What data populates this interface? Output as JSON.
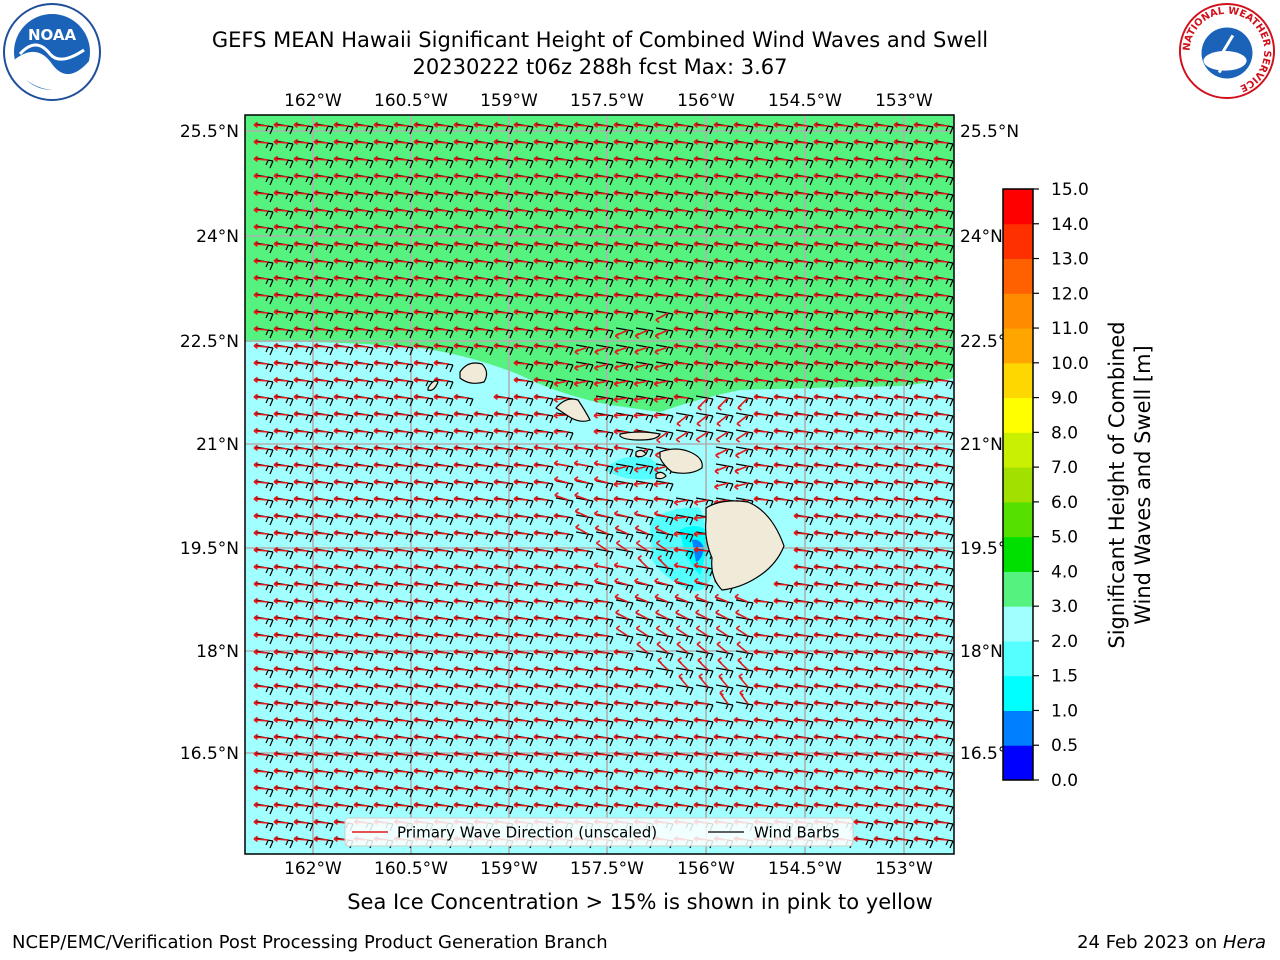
{
  "header": {
    "title_line1": "GEFS MEAN Hawaii Significant Height of Combined Wind Waves and Swell",
    "title_line2": "20230222 t06z 288h fcst   Max: 3.67"
  },
  "logos": {
    "left": "noaa-logo",
    "right": "nws-logo",
    "left_text": "NOAA",
    "right_ring_text": "NATIONAL WEATHER SERVICE"
  },
  "map": {
    "lon_labels": [
      "162°W",
      "160.5°W",
      "159°W",
      "157.5°W",
      "156°W",
      "154.5°W",
      "153°W"
    ],
    "lat_labels": [
      "25.5°N",
      "24°N",
      "22.5°N",
      "21°N",
      "19.5°N",
      "18°N",
      "16.5°N"
    ],
    "colors": {
      "green_zone": "#55f27f",
      "cyan_zone": "#a2ffff",
      "light_cyan": "#55ffff",
      "cyan_mid": "#00ffff",
      "blue_zone": "#0080ff",
      "land": "#f0ebd9",
      "wind_barb": "#000000",
      "wave_arrow": "#e31a1c",
      "gridline": "#b0b0b0"
    }
  },
  "legend": {
    "wave_label": "Primary Wave Direction (unscaled)",
    "barb_label": "Wind Barbs"
  },
  "colorbar": {
    "title_line1": "Significant Height of Combined",
    "title_line2": "Wind Waves and Swell [m]",
    "ticks": [
      "15.0",
      "14.0",
      "13.0",
      "12.0",
      "11.0",
      "10.0",
      "9.0",
      "8.0",
      "7.0",
      "6.0",
      "5.0",
      "4.0",
      "3.0",
      "2.0",
      "1.5",
      "1.0",
      "0.5",
      "0.0"
    ],
    "colors": [
      "#0000ff",
      "#0080ff",
      "#00ffff",
      "#55ffff",
      "#a2ffff",
      "#55f27f",
      "#00e000",
      "#55e000",
      "#a2e000",
      "#c8f000",
      "#ffff00",
      "#ffd700",
      "#ffa500",
      "#ff8c00",
      "#ff6000",
      "#ff3000",
      "#ff0000"
    ]
  },
  "footer": {
    "note": "Sea Ice Concentration > 15% is shown in pink to yellow",
    "credit_left": "NCEP/EMC/Verification Post Processing Product Generation Branch",
    "credit_date": "24 Feb 2023 on ",
    "credit_host": "Hera"
  }
}
